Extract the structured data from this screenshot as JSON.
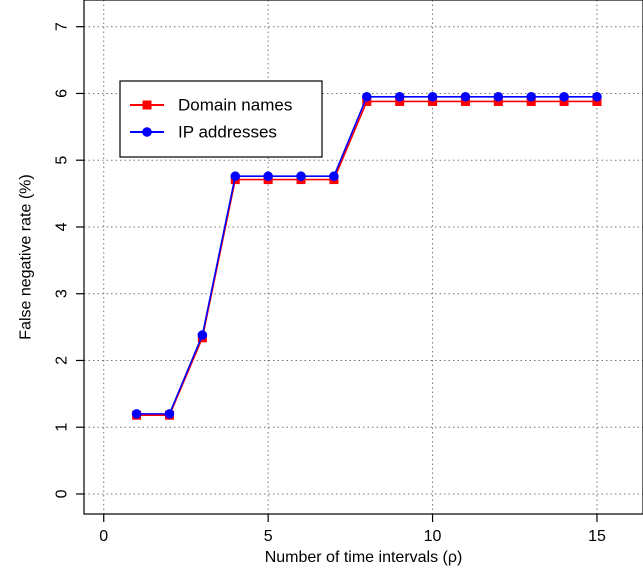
{
  "chart_data": {
    "type": "line",
    "title": "",
    "xlabel": "Number of time intervals (ρ)",
    "ylabel": "False negative rate (%)",
    "xlim": [
      -0.6,
      16.4
    ],
    "ylim": [
      -0.3,
      7.4
    ],
    "x_ticks": [
      0,
      5,
      10,
      15
    ],
    "y_ticks": [
      0,
      1,
      2,
      3,
      4,
      5,
      6,
      7
    ],
    "grid": true,
    "legend_position": "upper-left",
    "series": [
      {
        "name": "Domain names",
        "color": "#ff0000",
        "marker": "square",
        "x": [
          1,
          2,
          3,
          4,
          5,
          6,
          7,
          8,
          9,
          10,
          11,
          12,
          13,
          14,
          15
        ],
        "y": [
          1.18,
          1.18,
          2.34,
          4.71,
          4.71,
          4.71,
          4.71,
          5.88,
          5.88,
          5.88,
          5.88,
          5.88,
          5.88,
          5.88,
          5.88
        ]
      },
      {
        "name": "IP addresses",
        "color": "#0000ff",
        "marker": "circle",
        "x": [
          1,
          2,
          3,
          4,
          5,
          6,
          7,
          8,
          9,
          10,
          11,
          12,
          13,
          14,
          15
        ],
        "y": [
          1.2,
          1.2,
          2.38,
          4.76,
          4.76,
          4.76,
          4.76,
          5.95,
          5.95,
          5.95,
          5.95,
          5.95,
          5.95,
          5.95,
          5.95
        ]
      }
    ]
  }
}
